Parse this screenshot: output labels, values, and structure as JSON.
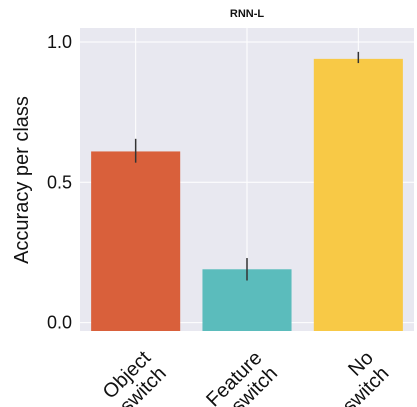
{
  "chart_data": {
    "type": "bar",
    "title": "RNN-L",
    "xlabel": "",
    "ylabel": "Accuracy per class",
    "ylim": [
      -0.03,
      1.05
    ],
    "yticks": [
      0.0,
      0.5,
      1.0
    ],
    "ytick_labels": [
      "0.0",
      "0.5",
      "1.0"
    ],
    "grid": true,
    "categories": [
      {
        "line1": "Object",
        "line2": "switch"
      },
      {
        "line1": "Feature",
        "line2": "switch"
      },
      {
        "line1": "No",
        "line2": "switch"
      }
    ],
    "values": [
      0.61,
      0.19,
      0.94
    ],
    "error_low": [
      0.57,
      0.15,
      0.925
    ],
    "error_high": [
      0.655,
      0.23,
      0.965
    ],
    "colors": [
      "#d9603b",
      "#5bbcbc",
      "#f8c946"
    ]
  }
}
